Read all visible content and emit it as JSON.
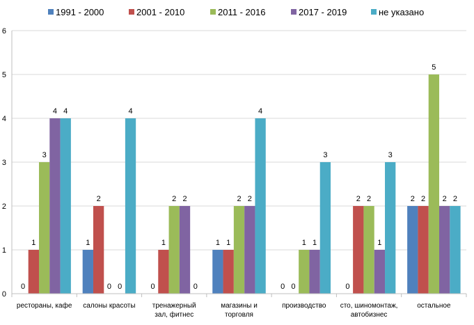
{
  "chart_data": {
    "type": "bar",
    "title": "",
    "xlabel": "",
    "ylabel": "",
    "ylim": [
      0,
      6
    ],
    "yticks": [
      0,
      1,
      2,
      3,
      4,
      5,
      6
    ],
    "grid": "horizontal",
    "legend_position": "top",
    "categories": [
      [
        "рестораны, кафе"
      ],
      [
        "салоны красоты"
      ],
      [
        "тренажерный",
        "зал, фитнес"
      ],
      [
        "магазины и",
        "торговля"
      ],
      [
        "производство"
      ],
      [
        "сто, шиномонтаж,",
        "автобизнес"
      ],
      [
        "остальное"
      ]
    ],
    "series": [
      {
        "name": "1991 - 2000",
        "color": "#4F81BD",
        "values": [
          0,
          1,
          0,
          1,
          0,
          0,
          2
        ]
      },
      {
        "name": "2001 - 2010",
        "color": "#C0504D",
        "values": [
          1,
          2,
          1,
          1,
          0,
          2,
          2
        ]
      },
      {
        "name": "2011 - 2016",
        "color": "#9BBB59",
        "values": [
          3,
          0,
          2,
          2,
          1,
          2,
          5
        ]
      },
      {
        "name": "2017 - 2019",
        "color": "#8064A2",
        "values": [
          4,
          0,
          2,
          2,
          1,
          1,
          2
        ]
      },
      {
        "name": "не указано",
        "color": "#4BACC6",
        "values": [
          4,
          4,
          0,
          4,
          3,
          3,
          2
        ]
      }
    ]
  }
}
